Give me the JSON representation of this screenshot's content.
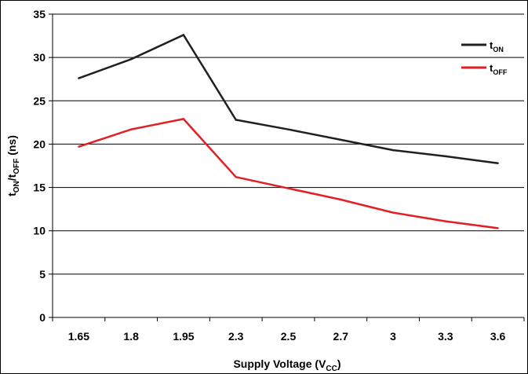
{
  "chart_data": {
    "type": "line",
    "categories": [
      "1.65",
      "1.8",
      "1.95",
      "2.3",
      "2.5",
      "2.7",
      "3",
      "3.3",
      "3.6"
    ],
    "series": [
      {
        "name": "tON",
        "name_main": "t",
        "name_sub": "ON",
        "color": "#231f20",
        "values": [
          27.6,
          29.8,
          32.6,
          22.8,
          21.7,
          20.5,
          19.3,
          18.6,
          17.8
        ]
      },
      {
        "name": "tOFF",
        "name_main": "t",
        "name_sub": "OFF",
        "color": "#e31e24",
        "values": [
          19.7,
          21.7,
          22.9,
          16.2,
          14.9,
          13.6,
          12.1,
          11.1,
          10.3
        ]
      }
    ],
    "xlabel": "Supply Voltage (VCC)",
    "xlabel_main": "Supply Voltage (V",
    "xlabel_sub": "CC",
    "xlabel_end": ")",
    "ylabel": "tON/tOFF (ns)",
    "ylabel_parts": [
      "t",
      "ON",
      "/t",
      "OFF",
      " (ns)"
    ],
    "ylim": [
      0,
      35
    ],
    "yticks": [
      0,
      5,
      10,
      15,
      20,
      25,
      30,
      35
    ],
    "grid": true,
    "legend_position": "top-right"
  }
}
